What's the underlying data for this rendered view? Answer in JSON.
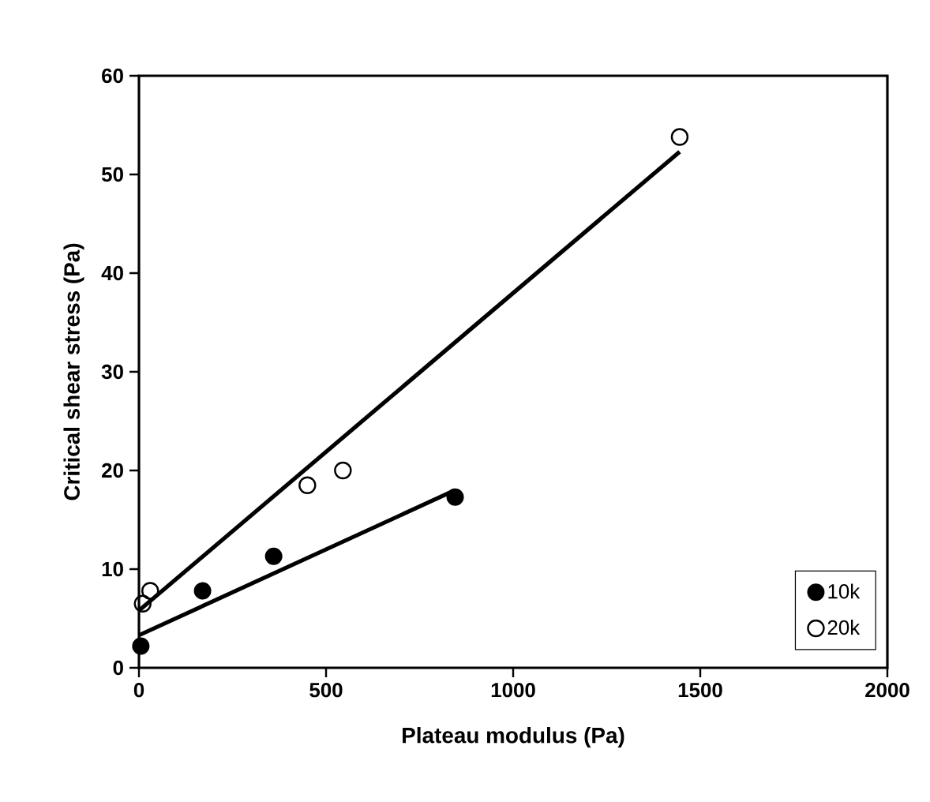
{
  "chart_data": {
    "type": "scatter",
    "xlabel": "Plateau modulus (Pa)",
    "ylabel": "Critical shear stress (Pa)",
    "xlim": [
      0,
      2000
    ],
    "ylim": [
      0,
      60
    ],
    "xticks": [
      0,
      500,
      1000,
      1500,
      2000
    ],
    "yticks": [
      0,
      10,
      20,
      30,
      40,
      50,
      60
    ],
    "grid": false,
    "legend": "bottom right",
    "series": [
      {
        "name": "10k",
        "color": "#000000",
        "marker": "circle",
        "x": [
          5,
          170,
          360,
          845
        ],
        "values": [
          2.2,
          7.8,
          11.3,
          17.3
        ]
      },
      {
        "name": "20k",
        "color": "#000000",
        "marker": "open circle",
        "x": [
          10,
          30,
          450,
          545,
          1445
        ],
        "values": [
          6.5,
          7.8,
          18.5,
          20,
          53.8
        ]
      },
      {
        "type": "line",
        "color": "#000000",
        "marker": "none",
        "x": [
          0,
          845
        ],
        "values": [
          3.3,
          18
        ]
      },
      {
        "type": "line",
        "color": "#000000",
        "marker": "none",
        "x": [
          0,
          1445
        ],
        "values": [
          5.8,
          52.3
        ]
      }
    ]
  }
}
